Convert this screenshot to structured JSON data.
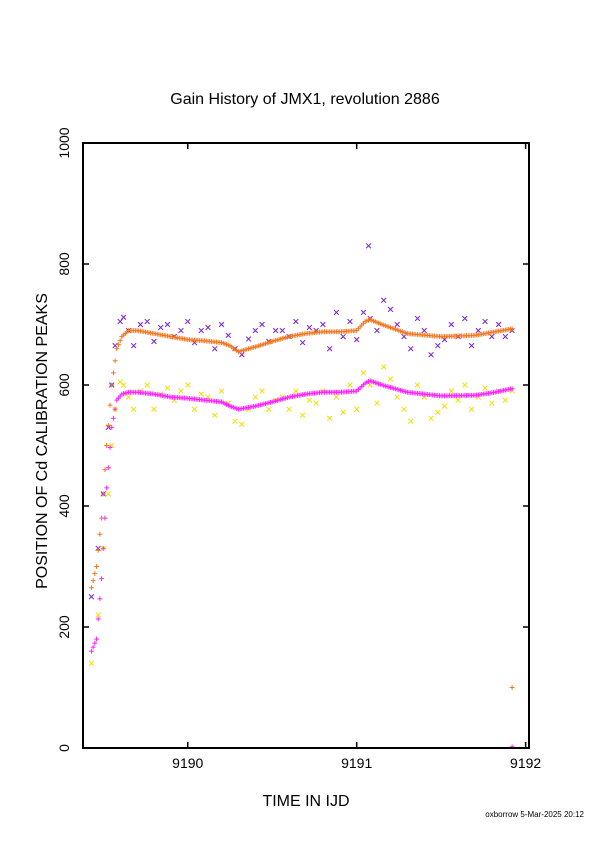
{
  "chart_data": {
    "type": "scatter",
    "title": "Gain History of JMX1, revolution 2886",
    "xlabel": "TIME IN IJD",
    "ylabel": "POSITION OF Cd CALIBRATION PEAKS",
    "xlim": [
      9189.38,
      9192.02
    ],
    "ylim": [
      0,
      1000
    ],
    "x_ticks": [
      9190,
      9191,
      9192
    ],
    "y_ticks": [
      0,
      200,
      400,
      600,
      800,
      1000
    ],
    "grid": false,
    "footer": "oxborrow  5-Mar-2025 20:12",
    "series": [
      {
        "color": "#7b1fd8",
        "marker": "x",
        "kind": "scatter",
        "x": [
          9189.43,
          9189.47,
          9189.5,
          9189.53,
          9189.55,
          9189.57,
          9189.6,
          9189.62,
          9189.65,
          9189.68,
          9189.72,
          9189.76,
          9189.8,
          9189.84,
          9189.88,
          9189.92,
          9189.96,
          9190.0,
          9190.04,
          9190.08,
          9190.12,
          9190.16,
          9190.2,
          9190.24,
          9190.28,
          9190.32,
          9190.36,
          9190.4,
          9190.44,
          9190.48,
          9190.52,
          9190.56,
          9190.6,
          9190.64,
          9190.68,
          9190.72,
          9190.76,
          9190.8,
          9190.84,
          9190.88,
          9190.92,
          9190.96,
          9191.0,
          9191.04,
          9191.08,
          9191.12,
          9191.16,
          9191.2,
          9191.24,
          9191.28,
          9191.32,
          9191.36,
          9191.4,
          9191.44,
          9191.48,
          9191.52,
          9191.56,
          9191.6,
          9191.64,
          9191.68,
          9191.72,
          9191.76,
          9191.8,
          9191.84,
          9191.88,
          9191.92
        ],
        "y": [
          250,
          330,
          420,
          530,
          600,
          665,
          705,
          712,
          690,
          665,
          700,
          705,
          672,
          695,
          700,
          680,
          690,
          705,
          670,
          690,
          695,
          660,
          700,
          682,
          660,
          650,
          676,
          690,
          700,
          672,
          690,
          690,
          680,
          705,
          670,
          695,
          690,
          700,
          660,
          720,
          680,
          705,
          675,
          720,
          710,
          690,
          740,
          725,
          700,
          680,
          660,
          710,
          690,
          650,
          665,
          675,
          700,
          680,
          710,
          665,
          690,
          705,
          680,
          700,
          680,
          690
        ]
      },
      {
        "color": "#f0e000",
        "marker": "x",
        "kind": "scatter",
        "x": [
          9189.43,
          9189.47,
          9189.5,
          9189.53,
          9189.55,
          9189.57,
          9189.6,
          9189.62,
          9189.65,
          9189.68,
          9189.72,
          9189.76,
          9189.8,
          9189.84,
          9189.88,
          9189.92,
          9189.96,
          9190.0,
          9190.04,
          9190.08,
          9190.12,
          9190.16,
          9190.2,
          9190.24,
          9190.28,
          9190.32,
          9190.36,
          9190.4,
          9190.44,
          9190.48,
          9190.52,
          9190.56,
          9190.6,
          9190.64,
          9190.68,
          9190.72,
          9190.76,
          9190.8,
          9190.84,
          9190.88,
          9190.92,
          9190.96,
          9191.0,
          9191.04,
          9191.08,
          9191.12,
          9191.16,
          9191.2,
          9191.24,
          9191.28,
          9191.32,
          9191.36,
          9191.4,
          9191.44,
          9191.48,
          9191.52,
          9191.56,
          9191.6,
          9191.64,
          9191.68,
          9191.72,
          9191.76,
          9191.8,
          9191.84,
          9191.88,
          9191.92
        ],
        "y": [
          140,
          220,
          330,
          420,
          500,
          560,
          605,
          600,
          580,
          560,
          590,
          600,
          560,
          585,
          595,
          575,
          590,
          600,
          560,
          585,
          580,
          550,
          590,
          570,
          540,
          535,
          560,
          580,
          590,
          560,
          575,
          580,
          560,
          590,
          550,
          575,
          570,
          590,
          545,
          580,
          555,
          600,
          560,
          620,
          600,
          570,
          630,
          610,
          580,
          560,
          540,
          600,
          580,
          545,
          555,
          565,
          590,
          575,
          600,
          560,
          580,
          595,
          570,
          590,
          575,
          590
        ]
      },
      {
        "color": "#f07820",
        "marker": "+",
        "kind": "line",
        "x": [
          9189.43,
          9189.46,
          9189.49,
          9189.52,
          9189.55,
          9189.58,
          9189.61,
          9189.65,
          9189.7,
          9189.8,
          9189.9,
          9190.0,
          9190.1,
          9190.2,
          9190.25,
          9190.3,
          9190.4,
          9190.5,
          9190.6,
          9190.7,
          9190.8,
          9190.9,
          9191.0,
          9191.05,
          9191.08,
          9191.15,
          9191.3,
          9191.5,
          9191.7,
          9191.8,
          9191.92
        ],
        "y": [
          265,
          300,
          380,
          500,
          600,
          660,
          680,
          690,
          690,
          685,
          680,
          675,
          673,
          670,
          665,
          655,
          663,
          672,
          680,
          685,
          688,
          688,
          690,
          705,
          708,
          700,
          685,
          680,
          682,
          687,
          693
        ]
      },
      {
        "color": "#ff20ff",
        "marker": "+",
        "kind": "line",
        "x": [
          9189.43,
          9189.46,
          9189.49,
          9189.52,
          9189.55,
          9189.58,
          9189.61,
          9189.65,
          9189.7,
          9189.8,
          9189.9,
          9190.0,
          9190.1,
          9190.2,
          9190.25,
          9190.3,
          9190.4,
          9190.5,
          9190.6,
          9190.7,
          9190.8,
          9190.9,
          9191.0,
          9191.05,
          9191.08,
          9191.15,
          9191.3,
          9191.5,
          9191.7,
          9191.8,
          9191.92
        ],
        "y": [
          160,
          180,
          280,
          430,
          530,
          575,
          585,
          588,
          588,
          585,
          580,
          578,
          575,
          572,
          565,
          560,
          565,
          572,
          580,
          585,
          588,
          588,
          590,
          603,
          607,
          600,
          588,
          582,
          583,
          587,
          594
        ]
      }
    ],
    "outliers": [
      {
        "color": "#7b1fd8",
        "marker": "x",
        "x": 9191.07,
        "y": 830
      },
      {
        "color": "#f07820",
        "marker": "+",
        "x": 9191.92,
        "y": 100
      },
      {
        "color": "#ff20ff",
        "marker": "+",
        "x": 9191.92,
        "y": 2
      }
    ]
  }
}
